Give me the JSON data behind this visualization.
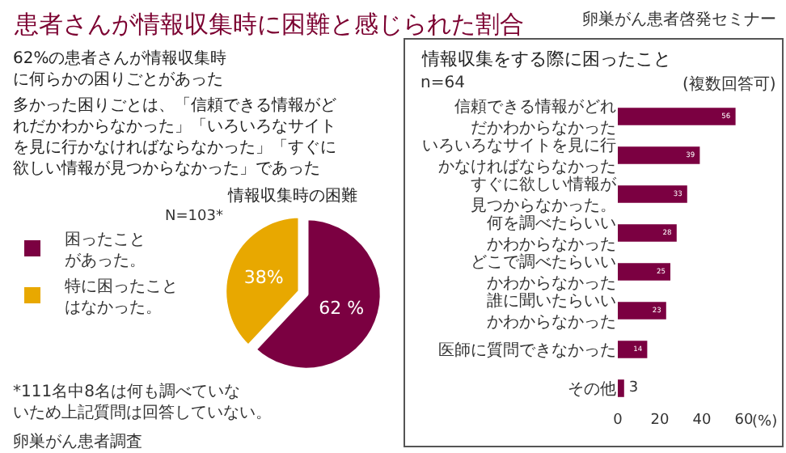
{
  "chart_data": [
    {
      "type": "other",
      "title": "患者さんが情報収集時に困難と感じられた割合",
      "annotations": [
        "卵巣がん患者啓発セミナー",
        "62%の患者さんが情報収集時に何らかの困りごとがあった",
        "多かった困りごとは、「信頼できる情報がどれだかわからなかった」「いろいろなサイトを見に行かなければならなかった」「すぐに欲しい情報が見つからなかった」であった"
      ]
    },
    {
      "type": "pie",
      "title": "情報収集時の困難",
      "categories": [
        "困ったことがあった。",
        "特に困ったことはなかった。"
      ],
      "values": [
        62,
        38
      ],
      "colors": [
        "#7b0041",
        "#e8a800"
      ],
      "value_labels": [
        "62 %",
        "38%"
      ],
      "legend": "left",
      "annotations": [
        "N=103*",
        "*111名中8名は何も調べていないため上記質問は回答していない。",
        "卵巣がん患者調査"
      ]
    },
    {
      "type": "bar",
      "orientation": "horizontal",
      "title": "情報収集をする際に困ったこと",
      "subtitle": "(複数回答可)",
      "annotations": [
        "n=64"
      ],
      "xlabel": "(%)",
      "categories": [
        "信頼できる情報がどれだかわからなかった",
        "いろいろなサイトを見に行かなければならなかった",
        "すぐに欲しい情報が見つからなかった。",
        "何を調べたらいいかわからなかった",
        "どこで調べたらいいかわからなかった",
        "誰に聞いたらいいかわからなかった",
        "医師に質問できなかった",
        "その他"
      ],
      "values": [
        56,
        39,
        33,
        28,
        25,
        23,
        14,
        3
      ],
      "color": "#7b0041",
      "xlim": [
        0,
        60
      ],
      "xticks": [
        0,
        20,
        40,
        60
      ],
      "data_labels": true
    }
  ]
}
